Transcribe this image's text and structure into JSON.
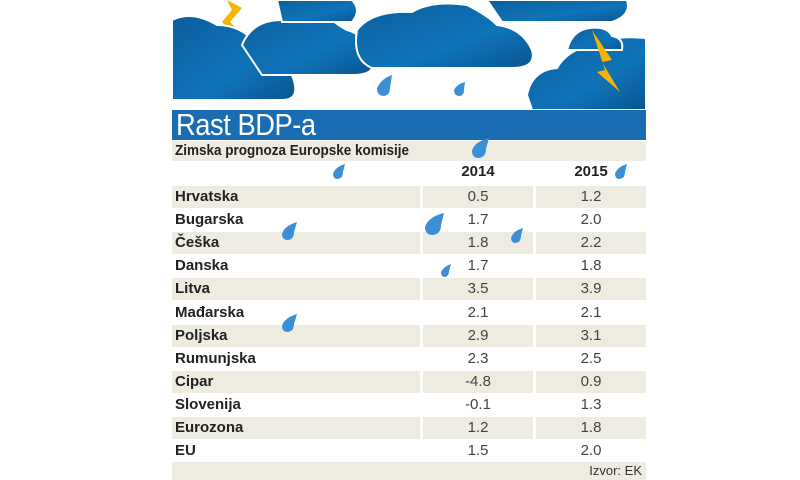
{
  "title": "Rast BDP-a",
  "subtitle": "Zimska prognoza Europske komisije",
  "source": "Izvor: EK",
  "colors": {
    "title_bar": "#1b6db3",
    "stripe": "#eeebe1",
    "cloud": "#0f6aa8",
    "lightning": "#f4b400",
    "drop": "#3a8fd6"
  },
  "chart_data": {
    "type": "table",
    "title": "Rast BDP-a",
    "subtitle": "Zimska prognoza Europske komisije",
    "columns": [
      "2014",
      "2015"
    ],
    "rows": [
      {
        "label": "Hrvatska",
        "values": [
          "0.5",
          "1.2"
        ]
      },
      {
        "label": "Bugarska",
        "values": [
          "1.7",
          "2.0"
        ]
      },
      {
        "label": "Češka",
        "values": [
          "1.8",
          "2.2"
        ]
      },
      {
        "label": "Danska",
        "values": [
          "1.7",
          "1.8"
        ]
      },
      {
        "label": "Litva",
        "values": [
          "3.5",
          "3.9"
        ]
      },
      {
        "label": "Mađarska",
        "values": [
          "2.1",
          "2.1"
        ]
      },
      {
        "label": "Poljska",
        "values": [
          "2.9",
          "3.1"
        ]
      },
      {
        "label": "Rumunjska",
        "values": [
          "2.3",
          "2.5"
        ]
      },
      {
        "label": "Cipar",
        "values": [
          "-4.8",
          "0.9"
        ]
      },
      {
        "label": "Slovenija",
        "values": [
          "-0.1",
          "1.3"
        ]
      },
      {
        "label": "Eurozona",
        "values": [
          "1.2",
          "1.8"
        ]
      },
      {
        "label": "EU",
        "values": [
          "1.5",
          "2.0"
        ]
      }
    ],
    "source": "Izvor: EK"
  }
}
